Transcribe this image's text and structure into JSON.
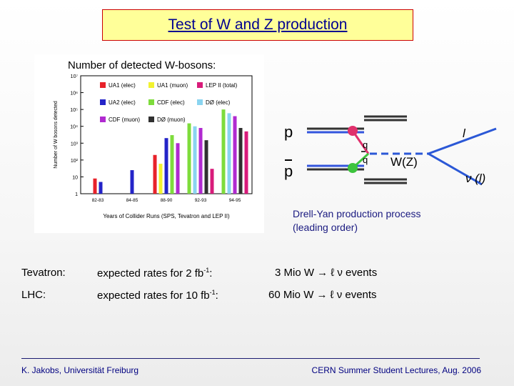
{
  "title": "Test of W and Z production",
  "chart_panel": {
    "heading": "Number of detected W-bosons:",
    "chart_data": {
      "type": "bar",
      "ylabel": "Number of W bosons detected",
      "xlabel": "Years of Collider Runs (SPS, Tevatron and LEP II)",
      "y_scale": "log",
      "y_ticks": [
        "1",
        "10",
        "10²",
        "10³",
        "10⁴",
        "10⁵",
        "10⁶",
        "10⁷"
      ],
      "ylim": [
        1,
        10000000
      ],
      "categories": [
        "82-83",
        "84-85",
        "88-90",
        "92-93",
        "94-95"
      ],
      "legend": [
        {
          "label": "UA1 (elec)",
          "color": "#e8222a"
        },
        {
          "label": "UA1 (muon)",
          "color": "#f2f230"
        },
        {
          "label": "LEP II (total)",
          "color": "#d81b7a"
        },
        {
          "label": "UA2 (elec)",
          "color": "#2424c8"
        },
        {
          "label": "CDF (elec)",
          "color": "#7edc3c"
        },
        {
          "label": "DØ (elec)",
          "color": "#8ad4f0"
        },
        {
          "label": "CDF (muon)",
          "color": "#b02ad0"
        },
        {
          "label": "DØ (muon)",
          "color": "#303030"
        }
      ],
      "bars": [
        {
          "category": "82-83",
          "series": "UA1 (elec)",
          "value": 8
        },
        {
          "category": "82-83",
          "series": "UA2 (elec)",
          "value": 5
        },
        {
          "category": "84-85",
          "series": "UA2 (elec)",
          "value": 25
        },
        {
          "category": "88-90",
          "series": "UA1 (elec)",
          "value": 200
        },
        {
          "category": "88-90",
          "series": "UA1 (muon)",
          "value": 60
        },
        {
          "category": "88-90",
          "series": "UA2 (elec)",
          "value": 2000
        },
        {
          "category": "88-90",
          "series": "CDF (elec)",
          "value": 3000
        },
        {
          "category": "88-90",
          "series": "CDF (muon)",
          "value": 1000
        },
        {
          "category": "92-93",
          "series": "CDF (elec)",
          "value": 15000
        },
        {
          "category": "92-93",
          "series": "DØ (elec)",
          "value": 10000
        },
        {
          "category": "92-93",
          "series": "CDF (muon)",
          "value": 8000
        },
        {
          "category": "92-93",
          "series": "DØ (muon)",
          "value": 1500
        },
        {
          "category": "92-93",
          "series": "LEP II (total)",
          "value": 30
        },
        {
          "category": "94-95",
          "series": "CDF (elec)",
          "value": 100000
        },
        {
          "category": "94-95",
          "series": "DØ (elec)",
          "value": 60000
        },
        {
          "category": "94-95",
          "series": "CDF (muon)",
          "value": 40000
        },
        {
          "category": "94-95",
          "series": "DØ (muon)",
          "value": 8000
        },
        {
          "category": "94-95",
          "series": "LEP II (total)",
          "value": 5000
        }
      ]
    }
  },
  "diagram": {
    "p": "p",
    "pbar": "p",
    "q": "q",
    "qbar": "q",
    "boson": "W(Z)",
    "lepton": "l",
    "neutrino": "ν (l)",
    "caption_line1": "Drell-Yan production process",
    "caption_line2": "(leading order)"
  },
  "rates": {
    "tevatron": {
      "machine": "Tevatron:",
      "label": "expected rates  for   2 fb",
      "exp": "-1",
      "colon": ":",
      "value": "3 Mio W → ℓ ν  events"
    },
    "lhc": {
      "machine": "LHC:",
      "label": "expected rates for  10 fb",
      "exp": "-1",
      "colon": ":",
      "value": "60 Mio W → ℓ ν  events"
    }
  },
  "footer": {
    "left": "K. Jakobs, Universität Freiburg",
    "right": "CERN Summer Student Lectures,  Aug.  2006"
  }
}
